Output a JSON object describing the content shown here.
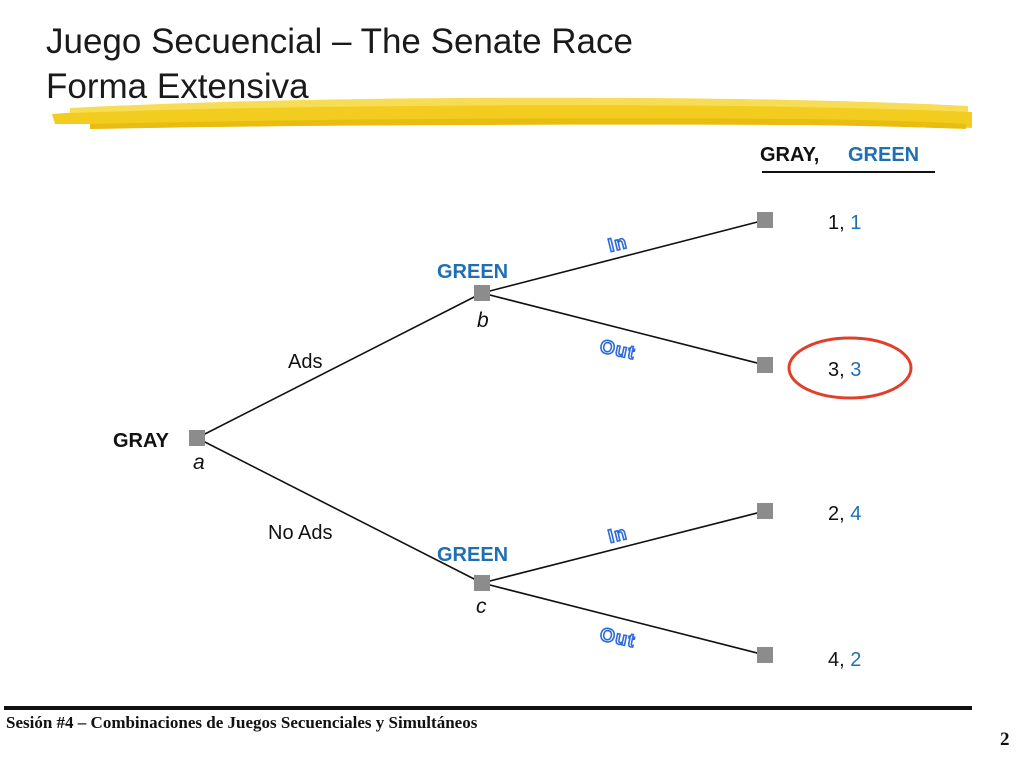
{
  "slide": {
    "title_line1": "Juego Secuencial – The Senate Race",
    "title_line2": "Forma Extensiva",
    "footer": "Sesión #4 – Combinaciones de Juegos Secuenciales y Simultáneos",
    "page_number": "2"
  },
  "tree": {
    "payoff_header": {
      "player1": "GRAY,",
      "player2": "GREEN"
    },
    "root": {
      "player": "GRAY",
      "node_label": "a"
    },
    "branches": [
      {
        "label": "Ads",
        "node": {
          "player": "GREEN",
          "node_label": "b"
        }
      },
      {
        "label": "No Ads",
        "node": {
          "player": "GREEN",
          "node_label": "c"
        }
      }
    ],
    "leaves": [
      {
        "action": "In",
        "gray": "1",
        "green": "1"
      },
      {
        "action": "Out",
        "gray": "3",
        "green": "3",
        "highlighted": true
      },
      {
        "action": "In",
        "gray": "2",
        "green": "4"
      },
      {
        "action": "Out",
        "gray": "4",
        "green": "2"
      }
    ]
  },
  "colors": {
    "green_player": "#1f6fb2",
    "gray_player": "#111111",
    "node_fill": "#8c8c8c",
    "action_label": "#2f6bd8",
    "highlight": "#e0402a",
    "brush": "#f2cc1f"
  }
}
